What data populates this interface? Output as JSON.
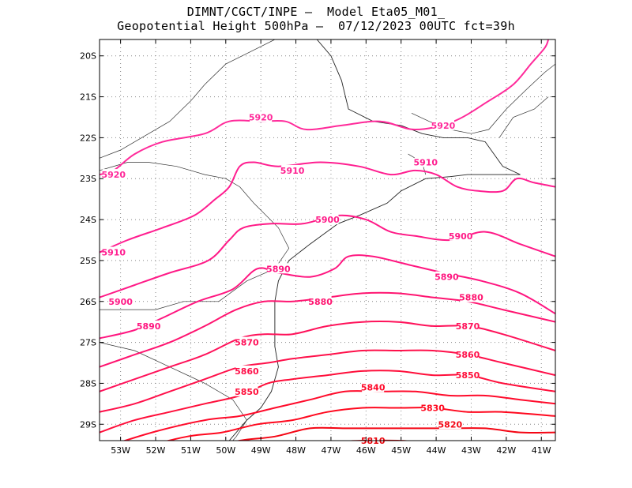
{
  "title": {
    "line1": "DIMNT/CGCT/INPE –  Model Eta05_M01_",
    "line2": "Geopotential Height 500hPa –  07/12/2023 00UTC fct=39h"
  },
  "chart_data": {
    "type": "contour-map",
    "field": "Geopotential Height 500hPa",
    "lon_range": [
      -53.6,
      -40.6
    ],
    "lat_range": [
      -29.4,
      -19.6
    ],
    "grid": true,
    "x_ticks": [
      {
        "value": -53,
        "label": "53W"
      },
      {
        "value": -52,
        "label": "52W"
      },
      {
        "value": -51,
        "label": "51W"
      },
      {
        "value": -50,
        "label": "50W"
      },
      {
        "value": -49,
        "label": "49W"
      },
      {
        "value": -48,
        "label": "48W"
      },
      {
        "value": -47,
        "label": "47W"
      },
      {
        "value": -46,
        "label": "46W"
      },
      {
        "value": -45,
        "label": "45W"
      },
      {
        "value": -44,
        "label": "44W"
      },
      {
        "value": -43,
        "label": "43W"
      },
      {
        "value": -42,
        "label": "42W"
      },
      {
        "value": -41,
        "label": "41W"
      }
    ],
    "y_ticks": [
      {
        "value": -20,
        "label": "20S"
      },
      {
        "value": -21,
        "label": "21S"
      },
      {
        "value": -22,
        "label": "22S"
      },
      {
        "value": -23,
        "label": "23S"
      },
      {
        "value": -24,
        "label": "24S"
      },
      {
        "value": -25,
        "label": "25S"
      },
      {
        "value": -26,
        "label": "26S"
      },
      {
        "value": -27,
        "label": "27S"
      },
      {
        "value": -28,
        "label": "28S"
      },
      {
        "value": -29,
        "label": "29S"
      }
    ],
    "contours": [
      {
        "level": 5920,
        "color": "#ff2a9a",
        "points": [
          [
            -53.6,
            -22.9
          ],
          [
            -53.2,
            -22.8
          ],
          [
            -52.6,
            -22.4
          ],
          [
            -51.8,
            -22.1
          ],
          [
            -50.6,
            -21.9
          ],
          [
            -49.9,
            -21.6
          ],
          [
            -49.0,
            -21.6
          ],
          [
            -48.3,
            -21.6
          ],
          [
            -47.7,
            -21.8
          ],
          [
            -46.7,
            -21.7
          ],
          [
            -45.6,
            -21.6
          ],
          [
            -44.6,
            -21.8
          ],
          [
            -43.5,
            -21.6
          ],
          [
            -42.5,
            -21.1
          ],
          [
            -41.8,
            -20.7
          ],
          [
            -41.3,
            -20.2
          ],
          [
            -40.9,
            -19.8
          ],
          [
            -40.8,
            -19.6
          ]
        ],
        "labels": [
          [
            -49.0,
            -21.5
          ],
          [
            -53.2,
            -22.9
          ],
          [
            -43.8,
            -21.7
          ]
        ]
      },
      {
        "level": 5910,
        "color": "#ff1e90",
        "points": [
          [
            -53.6,
            -24.8
          ],
          [
            -52.8,
            -24.5
          ],
          [
            -51.8,
            -24.2
          ],
          [
            -50.9,
            -23.9
          ],
          [
            -50.3,
            -23.5
          ],
          [
            -49.9,
            -23.2
          ],
          [
            -49.6,
            -22.7
          ],
          [
            -49.2,
            -22.6
          ],
          [
            -48.5,
            -22.7
          ],
          [
            -47.3,
            -22.6
          ],
          [
            -46.2,
            -22.7
          ],
          [
            -45.3,
            -22.9
          ],
          [
            -44.6,
            -22.8
          ],
          [
            -44.0,
            -22.9
          ],
          [
            -43.4,
            -23.2
          ],
          [
            -42.8,
            -23.3
          ],
          [
            -42.1,
            -23.3
          ],
          [
            -41.7,
            -23.0
          ],
          [
            -41.2,
            -23.1
          ],
          [
            -40.6,
            -23.2
          ]
        ],
        "labels": [
          [
            -48.1,
            -22.8
          ],
          [
            -53.2,
            -24.8
          ],
          [
            -44.3,
            -22.6
          ]
        ]
      },
      {
        "level": 5900,
        "color": "#ff1a87",
        "points": [
          [
            -53.6,
            -25.9
          ],
          [
            -52.6,
            -25.6
          ],
          [
            -51.6,
            -25.3
          ],
          [
            -50.5,
            -25.0
          ],
          [
            -49.9,
            -24.5
          ],
          [
            -49.5,
            -24.2
          ],
          [
            -48.7,
            -24.1
          ],
          [
            -47.8,
            -24.1
          ],
          [
            -46.8,
            -23.9
          ],
          [
            -46.0,
            -24.0
          ],
          [
            -45.3,
            -24.3
          ],
          [
            -44.6,
            -24.4
          ],
          [
            -43.6,
            -24.5
          ],
          [
            -42.6,
            -24.3
          ],
          [
            -41.6,
            -24.6
          ],
          [
            -40.6,
            -24.9
          ]
        ],
        "labels": [
          [
            -47.1,
            -24.0
          ],
          [
            -53.0,
            -26.0
          ],
          [
            -43.3,
            -24.4
          ]
        ]
      },
      {
        "level": 5890,
        "color": "#ff1680",
        "points": [
          [
            -53.6,
            -26.9
          ],
          [
            -52.6,
            -26.7
          ],
          [
            -51.8,
            -26.4
          ],
          [
            -50.8,
            -26.0
          ],
          [
            -49.8,
            -25.7
          ],
          [
            -49.1,
            -25.2
          ],
          [
            -48.5,
            -25.3
          ],
          [
            -47.6,
            -25.4
          ],
          [
            -46.9,
            -25.2
          ],
          [
            -46.5,
            -24.9
          ],
          [
            -45.8,
            -24.9
          ],
          [
            -44.8,
            -25.1
          ],
          [
            -43.8,
            -25.3
          ],
          [
            -42.7,
            -25.5
          ],
          [
            -41.6,
            -25.8
          ],
          [
            -40.6,
            -26.3
          ]
        ],
        "labels": [
          [
            -48.5,
            -25.2
          ],
          [
            -52.2,
            -26.6
          ],
          [
            -43.7,
            -25.4
          ]
        ]
      },
      {
        "level": 5880,
        "color": "#ff1470",
        "points": [
          [
            -53.6,
            -27.6
          ],
          [
            -52.6,
            -27.3
          ],
          [
            -51.6,
            -27.0
          ],
          [
            -50.6,
            -26.6
          ],
          [
            -49.7,
            -26.2
          ],
          [
            -48.9,
            -26.0
          ],
          [
            -48.1,
            -26.0
          ],
          [
            -47.1,
            -25.9
          ],
          [
            -46.1,
            -25.8
          ],
          [
            -45.1,
            -25.8
          ],
          [
            -44.1,
            -25.9
          ],
          [
            -43.1,
            -26.0
          ],
          [
            -42.1,
            -26.2
          ],
          [
            -40.6,
            -26.5
          ]
        ],
        "labels": [
          [
            -47.3,
            -26.0
          ],
          [
            -43.0,
            -25.9
          ]
        ]
      },
      {
        "level": 5870,
        "color": "#ff125a",
        "points": [
          [
            -53.6,
            -28.2
          ],
          [
            -52.6,
            -27.9
          ],
          [
            -51.6,
            -27.6
          ],
          [
            -50.6,
            -27.3
          ],
          [
            -49.6,
            -26.9
          ],
          [
            -48.9,
            -26.8
          ],
          [
            -48.1,
            -26.8
          ],
          [
            -47.1,
            -26.6
          ],
          [
            -46.1,
            -26.5
          ],
          [
            -45.1,
            -26.5
          ],
          [
            -44.1,
            -26.6
          ],
          [
            -43.1,
            -26.6
          ],
          [
            -42.1,
            -26.8
          ],
          [
            -40.6,
            -27.2
          ]
        ],
        "labels": [
          [
            -49.4,
            -27.0
          ],
          [
            -43.1,
            -26.6
          ]
        ]
      },
      {
        "level": 5860,
        "color": "#ff104a",
        "points": [
          [
            -53.6,
            -28.7
          ],
          [
            -52.6,
            -28.5
          ],
          [
            -51.6,
            -28.2
          ],
          [
            -50.6,
            -27.9
          ],
          [
            -49.6,
            -27.6
          ],
          [
            -48.8,
            -27.5
          ],
          [
            -48.1,
            -27.4
          ],
          [
            -47.1,
            -27.3
          ],
          [
            -46.1,
            -27.2
          ],
          [
            -45.1,
            -27.2
          ],
          [
            -44.1,
            -27.2
          ],
          [
            -43.1,
            -27.3
          ],
          [
            -42.1,
            -27.5
          ],
          [
            -40.6,
            -27.8
          ]
        ],
        "labels": [
          [
            -49.4,
            -27.7
          ],
          [
            -43.1,
            -27.3
          ]
        ]
      },
      {
        "level": 5850,
        "color": "#ff0e3a",
        "points": [
          [
            -53.6,
            -29.2
          ],
          [
            -52.6,
            -28.9
          ],
          [
            -51.6,
            -28.7
          ],
          [
            -50.6,
            -28.5
          ],
          [
            -49.6,
            -28.3
          ],
          [
            -48.8,
            -28.0
          ],
          [
            -48.1,
            -27.9
          ],
          [
            -47.1,
            -27.8
          ],
          [
            -46.1,
            -27.7
          ],
          [
            -45.1,
            -27.7
          ],
          [
            -44.1,
            -27.8
          ],
          [
            -43.1,
            -27.8
          ],
          [
            -42.1,
            -28.0
          ],
          [
            -40.6,
            -28.2
          ]
        ],
        "labels": [
          [
            -49.4,
            -28.2
          ],
          [
            -43.1,
            -27.8
          ]
        ]
      },
      {
        "level": 5840,
        "color": "#ff0a2a",
        "points": [
          [
            -53.6,
            -29.6
          ],
          [
            -52.1,
            -29.2
          ],
          [
            -50.6,
            -28.9
          ],
          [
            -49.6,
            -28.8
          ],
          [
            -48.6,
            -28.6
          ],
          [
            -47.6,
            -28.4
          ],
          [
            -46.6,
            -28.2
          ],
          [
            -45.6,
            -28.2
          ],
          [
            -44.6,
            -28.2
          ],
          [
            -43.6,
            -28.3
          ],
          [
            -42.6,
            -28.3
          ],
          [
            -41.6,
            -28.4
          ],
          [
            -40.6,
            -28.5
          ]
        ],
        "labels": [
          [
            -45.8,
            -28.1
          ]
        ]
      },
      {
        "level": 5830,
        "color": "#ff081e",
        "points": [
          [
            -52.6,
            -29.6
          ],
          [
            -51.1,
            -29.3
          ],
          [
            -50.1,
            -29.2
          ],
          [
            -49.1,
            -29.0
          ],
          [
            -48.1,
            -28.9
          ],
          [
            -47.1,
            -28.7
          ],
          [
            -46.1,
            -28.6
          ],
          [
            -45.1,
            -28.6
          ],
          [
            -44.1,
            -28.6
          ],
          [
            -43.1,
            -28.7
          ],
          [
            -42.1,
            -28.7
          ],
          [
            -40.6,
            -28.8
          ]
        ],
        "labels": [
          [
            -44.1,
            -28.6
          ]
        ]
      },
      {
        "level": 5820,
        "color": "#f40614",
        "points": [
          [
            -50.6,
            -29.6
          ],
          [
            -49.6,
            -29.4
          ],
          [
            -48.6,
            -29.3
          ],
          [
            -47.6,
            -29.1
          ],
          [
            -46.6,
            -29.1
          ],
          [
            -45.6,
            -29.1
          ],
          [
            -44.6,
            -29.1
          ],
          [
            -43.6,
            -29.1
          ],
          [
            -42.6,
            -29.1
          ],
          [
            -41.6,
            -29.2
          ],
          [
            -40.6,
            -29.2
          ]
        ],
        "labels": [
          [
            -43.6,
            -29.0
          ]
        ]
      },
      {
        "level": 5810,
        "color": "#e8040c",
        "points": [
          [
            -48.2,
            -29.6
          ],
          [
            -47.1,
            -29.45
          ],
          [
            -46.1,
            -29.4
          ],
          [
            -45.1,
            -29.4
          ],
          [
            -44.1,
            -29.45
          ],
          [
            -43.1,
            -29.5
          ],
          [
            -42.1,
            -29.6
          ]
        ],
        "labels": [
          [
            -45.8,
            -29.4
          ]
        ]
      }
    ],
    "coastline": [
      [
        -47.4,
        -19.6
      ],
      [
        -47.0,
        -20.0
      ],
      [
        -46.7,
        -20.6
      ],
      [
        -46.5,
        -21.3
      ],
      [
        -45.8,
        -21.6
      ],
      [
        -45.0,
        -21.7
      ],
      [
        -44.4,
        -21.9
      ],
      [
        -43.8,
        -22.0
      ],
      [
        -43.1,
        -22.0
      ],
      [
        -42.6,
        -22.1
      ],
      [
        -42.1,
        -22.7
      ],
      [
        -41.6,
        -22.9
      ],
      [
        -41.9,
        -22.9
      ],
      [
        -43.1,
        -22.9
      ],
      [
        -43.6,
        -22.95
      ],
      [
        -44.3,
        -23.0
      ],
      [
        -45.0,
        -23.3
      ],
      [
        -45.4,
        -23.6
      ],
      [
        -46.2,
        -23.9
      ],
      [
        -46.8,
        -24.1
      ],
      [
        -47.6,
        -24.6
      ],
      [
        -48.2,
        -25.0
      ],
      [
        -48.5,
        -25.5
      ],
      [
        -48.6,
        -26.0
      ],
      [
        -48.6,
        -26.6
      ],
      [
        -48.6,
        -27.1
      ],
      [
        -48.5,
        -27.6
      ],
      [
        -48.7,
        -28.2
      ],
      [
        -49.0,
        -28.6
      ],
      [
        -49.4,
        -28.9
      ],
      [
        -49.9,
        -29.4
      ],
      [
        -50.1,
        -29.6
      ]
    ],
    "borders": [
      [
        [
          -53.6,
          -22.5
        ],
        [
          -53.0,
          -22.3
        ],
        [
          -52.4,
          -22.0
        ],
        [
          -51.6,
          -21.6
        ],
        [
          -51.0,
          -21.1
        ],
        [
          -50.6,
          -20.7
        ],
        [
          -50.0,
          -20.2
        ],
        [
          -49.3,
          -19.9
        ],
        [
          -48.6,
          -19.6
        ]
      ],
      [
        [
          -53.6,
          -22.8
        ],
        [
          -52.8,
          -22.6
        ],
        [
          -52.2,
          -22.6
        ],
        [
          -51.4,
          -22.7
        ],
        [
          -50.6,
          -22.9
        ],
        [
          -50.0,
          -23.0
        ],
        [
          -49.6,
          -23.2
        ],
        [
          -49.2,
          -23.6
        ],
        [
          -48.5,
          -24.2
        ],
        [
          -48.2,
          -24.7
        ],
        [
          -48.6,
          -25.2
        ],
        [
          -49.4,
          -25.5
        ],
        [
          -50.2,
          -26.0
        ],
        [
          -51.2,
          -26.0
        ],
        [
          -52.0,
          -26.2
        ],
        [
          -53.6,
          -26.2
        ]
      ],
      [
        [
          -53.6,
          -27.0
        ],
        [
          -52.6,
          -27.2
        ],
        [
          -51.6,
          -27.6
        ],
        [
          -50.6,
          -28.0
        ],
        [
          -49.8,
          -28.4
        ],
        [
          -49.4,
          -28.9
        ],
        [
          -49.7,
          -29.3
        ],
        [
          -50.0,
          -29.6
        ]
      ],
      [
        [
          -44.7,
          -21.4
        ],
        [
          -44.2,
          -21.6
        ],
        [
          -43.6,
          -21.8
        ],
        [
          -43.0,
          -21.9
        ],
        [
          -42.5,
          -21.8
        ],
        [
          -42.0,
          -21.3
        ],
        [
          -41.4,
          -20.8
        ],
        [
          -40.9,
          -20.4
        ],
        [
          -40.6,
          -20.2
        ]
      ],
      [
        [
          -44.8,
          -22.4
        ],
        [
          -44.4,
          -22.6
        ],
        [
          -44.3,
          -22.9
        ]
      ],
      [
        [
          -42.2,
          -22.0
        ],
        [
          -41.8,
          -21.5
        ],
        [
          -41.2,
          -21.3
        ],
        [
          -40.8,
          -21.0
        ]
      ]
    ]
  }
}
